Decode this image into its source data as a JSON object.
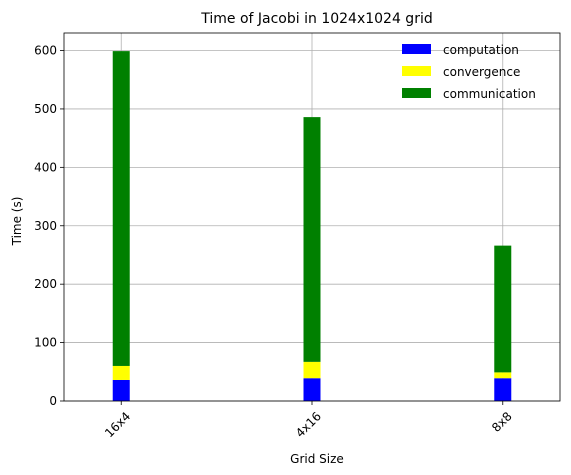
{
  "chart_data": {
    "type": "bar",
    "stacked": true,
    "title": "Time of Jacobi in 1024x1024 grid",
    "xlabel": "Grid Size",
    "ylabel": "Time (s)",
    "categories": [
      "16x4",
      "4x16",
      "8x8"
    ],
    "ylim": [
      0,
      630
    ],
    "yticks": [
      0,
      100,
      200,
      300,
      400,
      500,
      600
    ],
    "grid": true,
    "legend_position": "top-right",
    "legend_frame": false,
    "xtick_rotation": 45,
    "series": [
      {
        "name": "computation",
        "color": "#0000ff",
        "values": [
          36,
          39,
          39
        ]
      },
      {
        "name": "convergence",
        "color": "#ffff00",
        "values": [
          24,
          28,
          10
        ]
      },
      {
        "name": "communication",
        "color": "#008000",
        "values": [
          539,
          419,
          217
        ]
      }
    ]
  }
}
